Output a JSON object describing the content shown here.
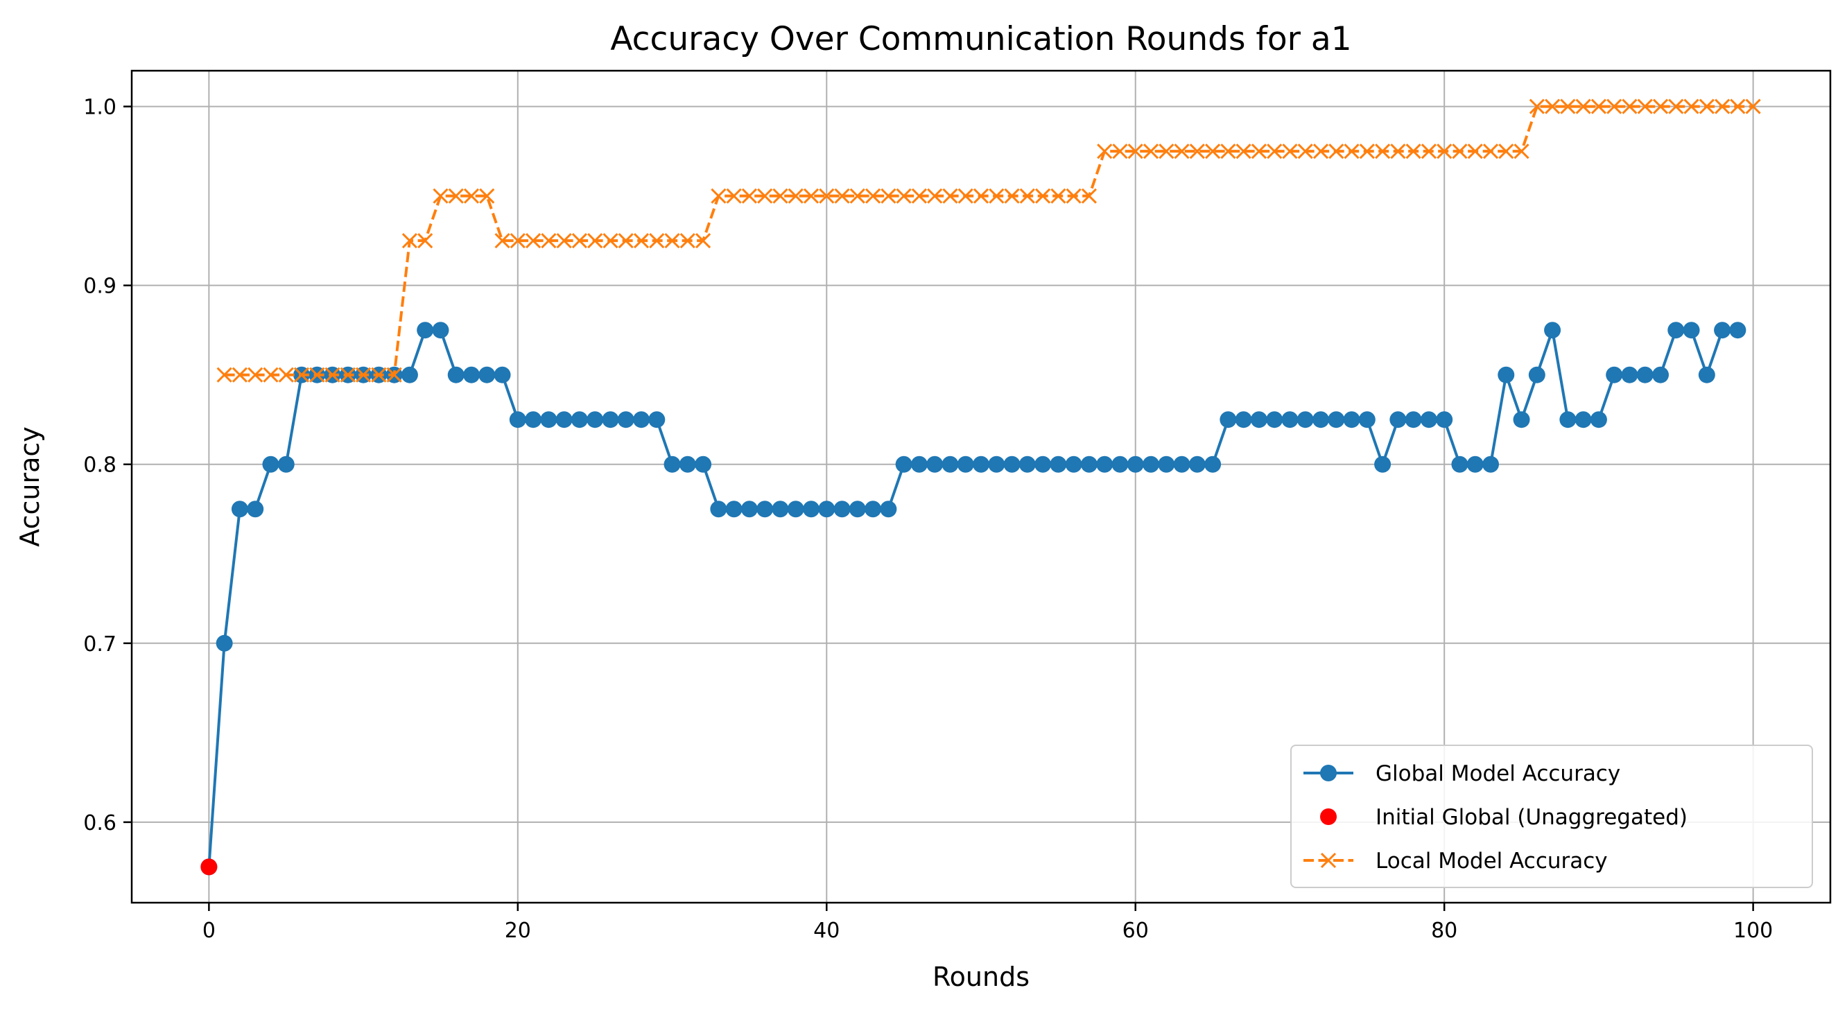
{
  "chart_data": {
    "type": "line",
    "title": "Accuracy Over Communication Rounds for a1",
    "xlabel": "Rounds",
    "ylabel": "Accuracy",
    "xlim": [
      -5,
      105
    ],
    "ylim": [
      0.555,
      1.02
    ],
    "x_ticks": [
      0,
      20,
      40,
      60,
      80,
      100
    ],
    "y_ticks": [
      0.6,
      0.7,
      0.8,
      0.9,
      1.0
    ],
    "x_tick_labels": [
      "0",
      "20",
      "40",
      "60",
      "80",
      "100"
    ],
    "y_tick_labels": [
      "0.6",
      "0.7",
      "0.8",
      "0.9",
      "1.0"
    ],
    "grid": true,
    "legend_position": "lower-right",
    "series": [
      {
        "name": "Global Model Accuracy",
        "color": "#1f77b4",
        "marker": "circle",
        "line_style": "solid",
        "x": [
          0,
          1,
          2,
          3,
          4,
          5,
          6,
          7,
          8,
          9,
          10,
          11,
          12,
          13,
          14,
          15,
          16,
          17,
          18,
          19,
          20,
          21,
          22,
          23,
          24,
          25,
          26,
          27,
          28,
          29,
          30,
          31,
          32,
          33,
          34,
          35,
          36,
          37,
          38,
          39,
          40,
          41,
          42,
          43,
          44,
          45,
          46,
          47,
          48,
          49,
          50,
          51,
          52,
          53,
          54,
          55,
          56,
          57,
          58,
          59,
          60,
          61,
          62,
          63,
          64,
          65,
          66,
          67,
          68,
          69,
          70,
          71,
          72,
          73,
          74,
          75,
          76,
          77,
          78,
          79,
          80,
          81,
          82,
          83,
          84,
          85,
          86,
          87,
          88,
          89,
          90,
          91,
          92,
          93,
          94,
          95,
          96,
          97,
          98,
          99
        ],
        "values": [
          0.575,
          0.7,
          0.775,
          0.775,
          0.8,
          0.8,
          0.85,
          0.85,
          0.85,
          0.85,
          0.85,
          0.85,
          0.85,
          0.85,
          0.875,
          0.875,
          0.85,
          0.85,
          0.85,
          0.85,
          0.825,
          0.825,
          0.825,
          0.825,
          0.825,
          0.825,
          0.825,
          0.825,
          0.825,
          0.825,
          0.8,
          0.8,
          0.8,
          0.775,
          0.775,
          0.775,
          0.775,
          0.775,
          0.775,
          0.775,
          0.775,
          0.775,
          0.775,
          0.775,
          0.775,
          0.8,
          0.8,
          0.8,
          0.8,
          0.8,
          0.8,
          0.8,
          0.8,
          0.8,
          0.8,
          0.8,
          0.8,
          0.8,
          0.8,
          0.8,
          0.8,
          0.8,
          0.8,
          0.8,
          0.8,
          0.8,
          0.825,
          0.825,
          0.825,
          0.825,
          0.825,
          0.825,
          0.825,
          0.825,
          0.825,
          0.825,
          0.8,
          0.825,
          0.825,
          0.825,
          0.825,
          0.8,
          0.8,
          0.8,
          0.85,
          0.825,
          0.85,
          0.875,
          0.825,
          0.825,
          0.825,
          0.85,
          0.85,
          0.85,
          0.85,
          0.875,
          0.875,
          0.85,
          0.875,
          0.875
        ]
      },
      {
        "name": "Initial Global (Unaggregated)",
        "color": "#ff0000",
        "marker": "circle",
        "line_style": "none",
        "x": [
          0
        ],
        "values": [
          0.575
        ]
      },
      {
        "name": "Local Model Accuracy",
        "color": "#ff7f0e",
        "marker": "x",
        "line_style": "dashed",
        "x": [
          1,
          2,
          3,
          4,
          5,
          6,
          7,
          8,
          9,
          10,
          11,
          12,
          13,
          14,
          15,
          16,
          17,
          18,
          19,
          20,
          21,
          22,
          23,
          24,
          25,
          26,
          27,
          28,
          29,
          30,
          31,
          32,
          33,
          34,
          35,
          36,
          37,
          38,
          39,
          40,
          41,
          42,
          43,
          44,
          45,
          46,
          47,
          48,
          49,
          50,
          51,
          52,
          53,
          54,
          55,
          56,
          57,
          58,
          59,
          60,
          61,
          62,
          63,
          64,
          65,
          66,
          67,
          68,
          69,
          70,
          71,
          72,
          73,
          74,
          75,
          76,
          77,
          78,
          79,
          80,
          81,
          82,
          83,
          84,
          85,
          86,
          87,
          88,
          89,
          90,
          91,
          92,
          93,
          94,
          95,
          96,
          97,
          98,
          99,
          100
        ],
        "values": [
          0.85,
          0.85,
          0.85,
          0.85,
          0.85,
          0.85,
          0.85,
          0.85,
          0.85,
          0.85,
          0.85,
          0.85,
          0.925,
          0.925,
          0.95,
          0.95,
          0.95,
          0.95,
          0.925,
          0.925,
          0.925,
          0.925,
          0.925,
          0.925,
          0.925,
          0.925,
          0.925,
          0.925,
          0.925,
          0.925,
          0.925,
          0.925,
          0.95,
          0.95,
          0.95,
          0.95,
          0.95,
          0.95,
          0.95,
          0.95,
          0.95,
          0.95,
          0.95,
          0.95,
          0.95,
          0.95,
          0.95,
          0.95,
          0.95,
          0.95,
          0.95,
          0.95,
          0.95,
          0.95,
          0.95,
          0.95,
          0.95,
          0.975,
          0.975,
          0.975,
          0.975,
          0.975,
          0.975,
          0.975,
          0.975,
          0.975,
          0.975,
          0.975,
          0.975,
          0.975,
          0.975,
          0.975,
          0.975,
          0.975,
          0.975,
          0.975,
          0.975,
          0.975,
          0.975,
          0.975,
          0.975,
          0.975,
          0.975,
          0.975,
          0.975,
          1.0,
          1.0,
          1.0,
          1.0,
          1.0,
          1.0,
          1.0,
          1.0,
          1.0,
          1.0,
          1.0,
          1.0,
          1.0,
          1.0,
          1.0
        ]
      }
    ]
  }
}
